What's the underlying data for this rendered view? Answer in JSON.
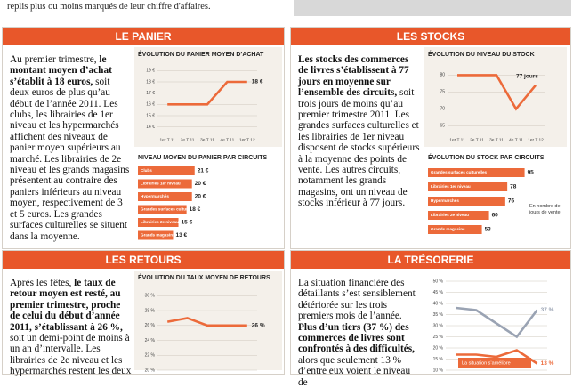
{
  "intro": {
    "left_text": "replis plus ou moins marqués de leur chiffre d'affaires."
  },
  "panels": [
    {
      "title": "LE PANIER",
      "paragraph": [
        {
          "text": "Au premier trimestre, "
        },
        {
          "text": "le montant moyen d’achat s’établit à 18 euros,",
          "bold": true
        },
        {
          "text": " soit deux euros de plus qu’au début de l’année 2011. Les clubs, les librairies de 1er niveau et les hypermarchés affichent des niveaux de panier moyen supérieurs au marché. Les librairies de 2e niveau et les grands magasins présentent au contraire des paniers inférieurs au niveau moyen, respectivement de 3 et 5 euros. Les grandes surfaces culturelles se situent dans la moyenne."
        }
      ],
      "charts": [
        {
          "type": "line",
          "title": "ÉVOLUTION DU PANIER MOYEN D’ACHAT",
          "categories": [
            "1er T 11",
            "2e T 11",
            "3e T 11",
            "4e T 11",
            "1er T 12"
          ],
          "series": [
            {
              "color": "#ec6a3a",
              "values": [
                16,
                16,
                16,
                18,
                18
              ],
              "end_label": "18 €"
            }
          ],
          "ylim": [
            13.5,
            19.5
          ],
          "yticks": [
            {
              "value": 14,
              "label": "14 €"
            },
            {
              "value": 15,
              "label": "15 €"
            },
            {
              "value": 16,
              "label": "16 €"
            },
            {
              "value": 17,
              "label": "17 €"
            },
            {
              "value": 18,
              "label": "18 €"
            },
            {
              "value": 19,
              "label": "19 €"
            }
          ],
          "grid": true
        },
        {
          "type": "bar",
          "orientation": "horizontal",
          "title": "NIVEAU MOYEN DU PANIER PAR CIRCUITS",
          "categories": [
            "Clubs",
            "Librairies 1er niveau",
            "Hypermarchés",
            "Grandes surfaces culturelles",
            "Librairies 2e niveau",
            "Grands magasins"
          ],
          "values": [
            21,
            20,
            20,
            18,
            15,
            13
          ],
          "value_labels": [
            "21 €",
            "20 €",
            "20 €",
            "18 €",
            "15 €",
            "13 €"
          ],
          "color": "#ec6a3a",
          "xlim": [
            0,
            28
          ]
        }
      ]
    },
    {
      "title": "LES STOCKS",
      "paragraph": [
        {
          "text": "Les stocks des commerces de livres s’établissent à 77 jours en moyenne sur l’ensemble des circuits,",
          "bold": true
        },
        {
          "text": " soit trois jours de moins qu’au premier trimestre 2011. Les grandes surfaces culturelles et les librairies de 1er niveau disposent de stocks supérieurs à la moyenne des points de vente. Les autres circuits, notamment les grands magasins, ont un niveau de stocks inférieur à 77 jours."
        }
      ],
      "charts": [
        {
          "type": "line",
          "title": "ÉVOLUTION DU NIVEAU DU STOCK",
          "categories": [
            "1er T 11",
            "2e T 11",
            "3e T 11",
            "4e T 11",
            "1er T 12"
          ],
          "series": [
            {
              "color": "#ec6a3a",
              "values": [
                80,
                80,
                80,
                70,
                77
              ],
              "end_label": "77 jours"
            }
          ],
          "ylim": [
            63,
            83
          ],
          "yticks": [
            65,
            70,
            75,
            80
          ],
          "grid": true
        },
        {
          "type": "bar",
          "orientation": "horizontal",
          "title": "ÉVOLUTION DU STOCK PAR CIRCUITS",
          "categories": [
            "Grandes surfaces culturelles",
            "Librairies 1er niveau",
            "Hypermarchés",
            "Librairies 2e niveau",
            "Grands magasins"
          ],
          "values": [
            95,
            78,
            76,
            60,
            53
          ],
          "color": "#ec6a3a",
          "xlim": [
            0,
            105
          ],
          "note": "En nombre de jours de vente"
        }
      ]
    },
    {
      "title": "LES RETOURS",
      "paragraph": [
        {
          "text": "Après les fêtes, "
        },
        {
          "text": "le taux de retour moyen est resté, au premier trimestre, proche de celui du début d’année 2011, s’établissant à 26 %,",
          "bold": true
        },
        {
          "text": " soit un demi-point de moins à un an d’intervalle. Les librairies de 2e niveau et les hypermarchés restent les deux"
        }
      ],
      "charts": [
        {
          "type": "line",
          "title": "ÉVOLUTION DU TAUX MOYEN DE RETOURS",
          "categories": [
            null,
            null,
            null,
            null,
            null
          ],
          "series": [
            {
              "color": "#ec6a3a",
              "values": [
                26.5,
                27,
                26,
                26,
                26
              ],
              "end_label": "26 %"
            }
          ],
          "ylim": [
            20,
            31
          ],
          "yticks": [
            {
              "value": 20,
              "label": "20 %"
            },
            {
              "value": 22,
              "label": "22 %"
            },
            {
              "value": 24,
              "label": "24 %"
            },
            {
              "value": 26,
              "label": "26 %"
            },
            {
              "value": 28,
              "label": "28 %"
            },
            {
              "value": 30,
              "label": "30 %"
            }
          ],
          "grid": true
        }
      ]
    },
    {
      "title": "LA TRÉSORERIE",
      "paragraph": [
        {
          "text": "La situation financière des détaillants s’est sensiblement détériorée sur les trois premiers mois de l’année. "
        },
        {
          "text": "Plus d’un tiers (37 %) des commerces de livres sont confrontés à des difficultés,",
          "bold": true
        },
        {
          "text": " alors que seulement 13 % d’entre eux voient le niveau de"
        }
      ],
      "charts": [
        {
          "type": "line",
          "categories": [
            null,
            null,
            null,
            null,
            null
          ],
          "series": [
            {
              "color": "#9aa3b3",
              "values": [
                38,
                37,
                31,
                25,
                37
              ],
              "end_label": "37 %"
            },
            {
              "name": "La situation s’améliore",
              "color": "#ec6a3a",
              "values": [
                17,
                17,
                16,
                19,
                13
              ],
              "end_label": "13 %"
            }
          ],
          "ylim": [
            10,
            50
          ],
          "yticks": [
            {
              "value": 10,
              "label": "10 %"
            },
            {
              "value": 15,
              "label": "15 %"
            },
            {
              "value": 20,
              "label": "20 %"
            },
            {
              "value": 25,
              "label": "25 %"
            },
            {
              "value": 30,
              "label": "30 %"
            },
            {
              "value": 35,
              "label": "35 %"
            },
            {
              "value": 40,
              "label": "40 %"
            },
            {
              "value": 45,
              "label": "45 %"
            },
            {
              "value": 50,
              "label": "50 %"
            }
          ],
          "grid": true
        }
      ]
    }
  ]
}
